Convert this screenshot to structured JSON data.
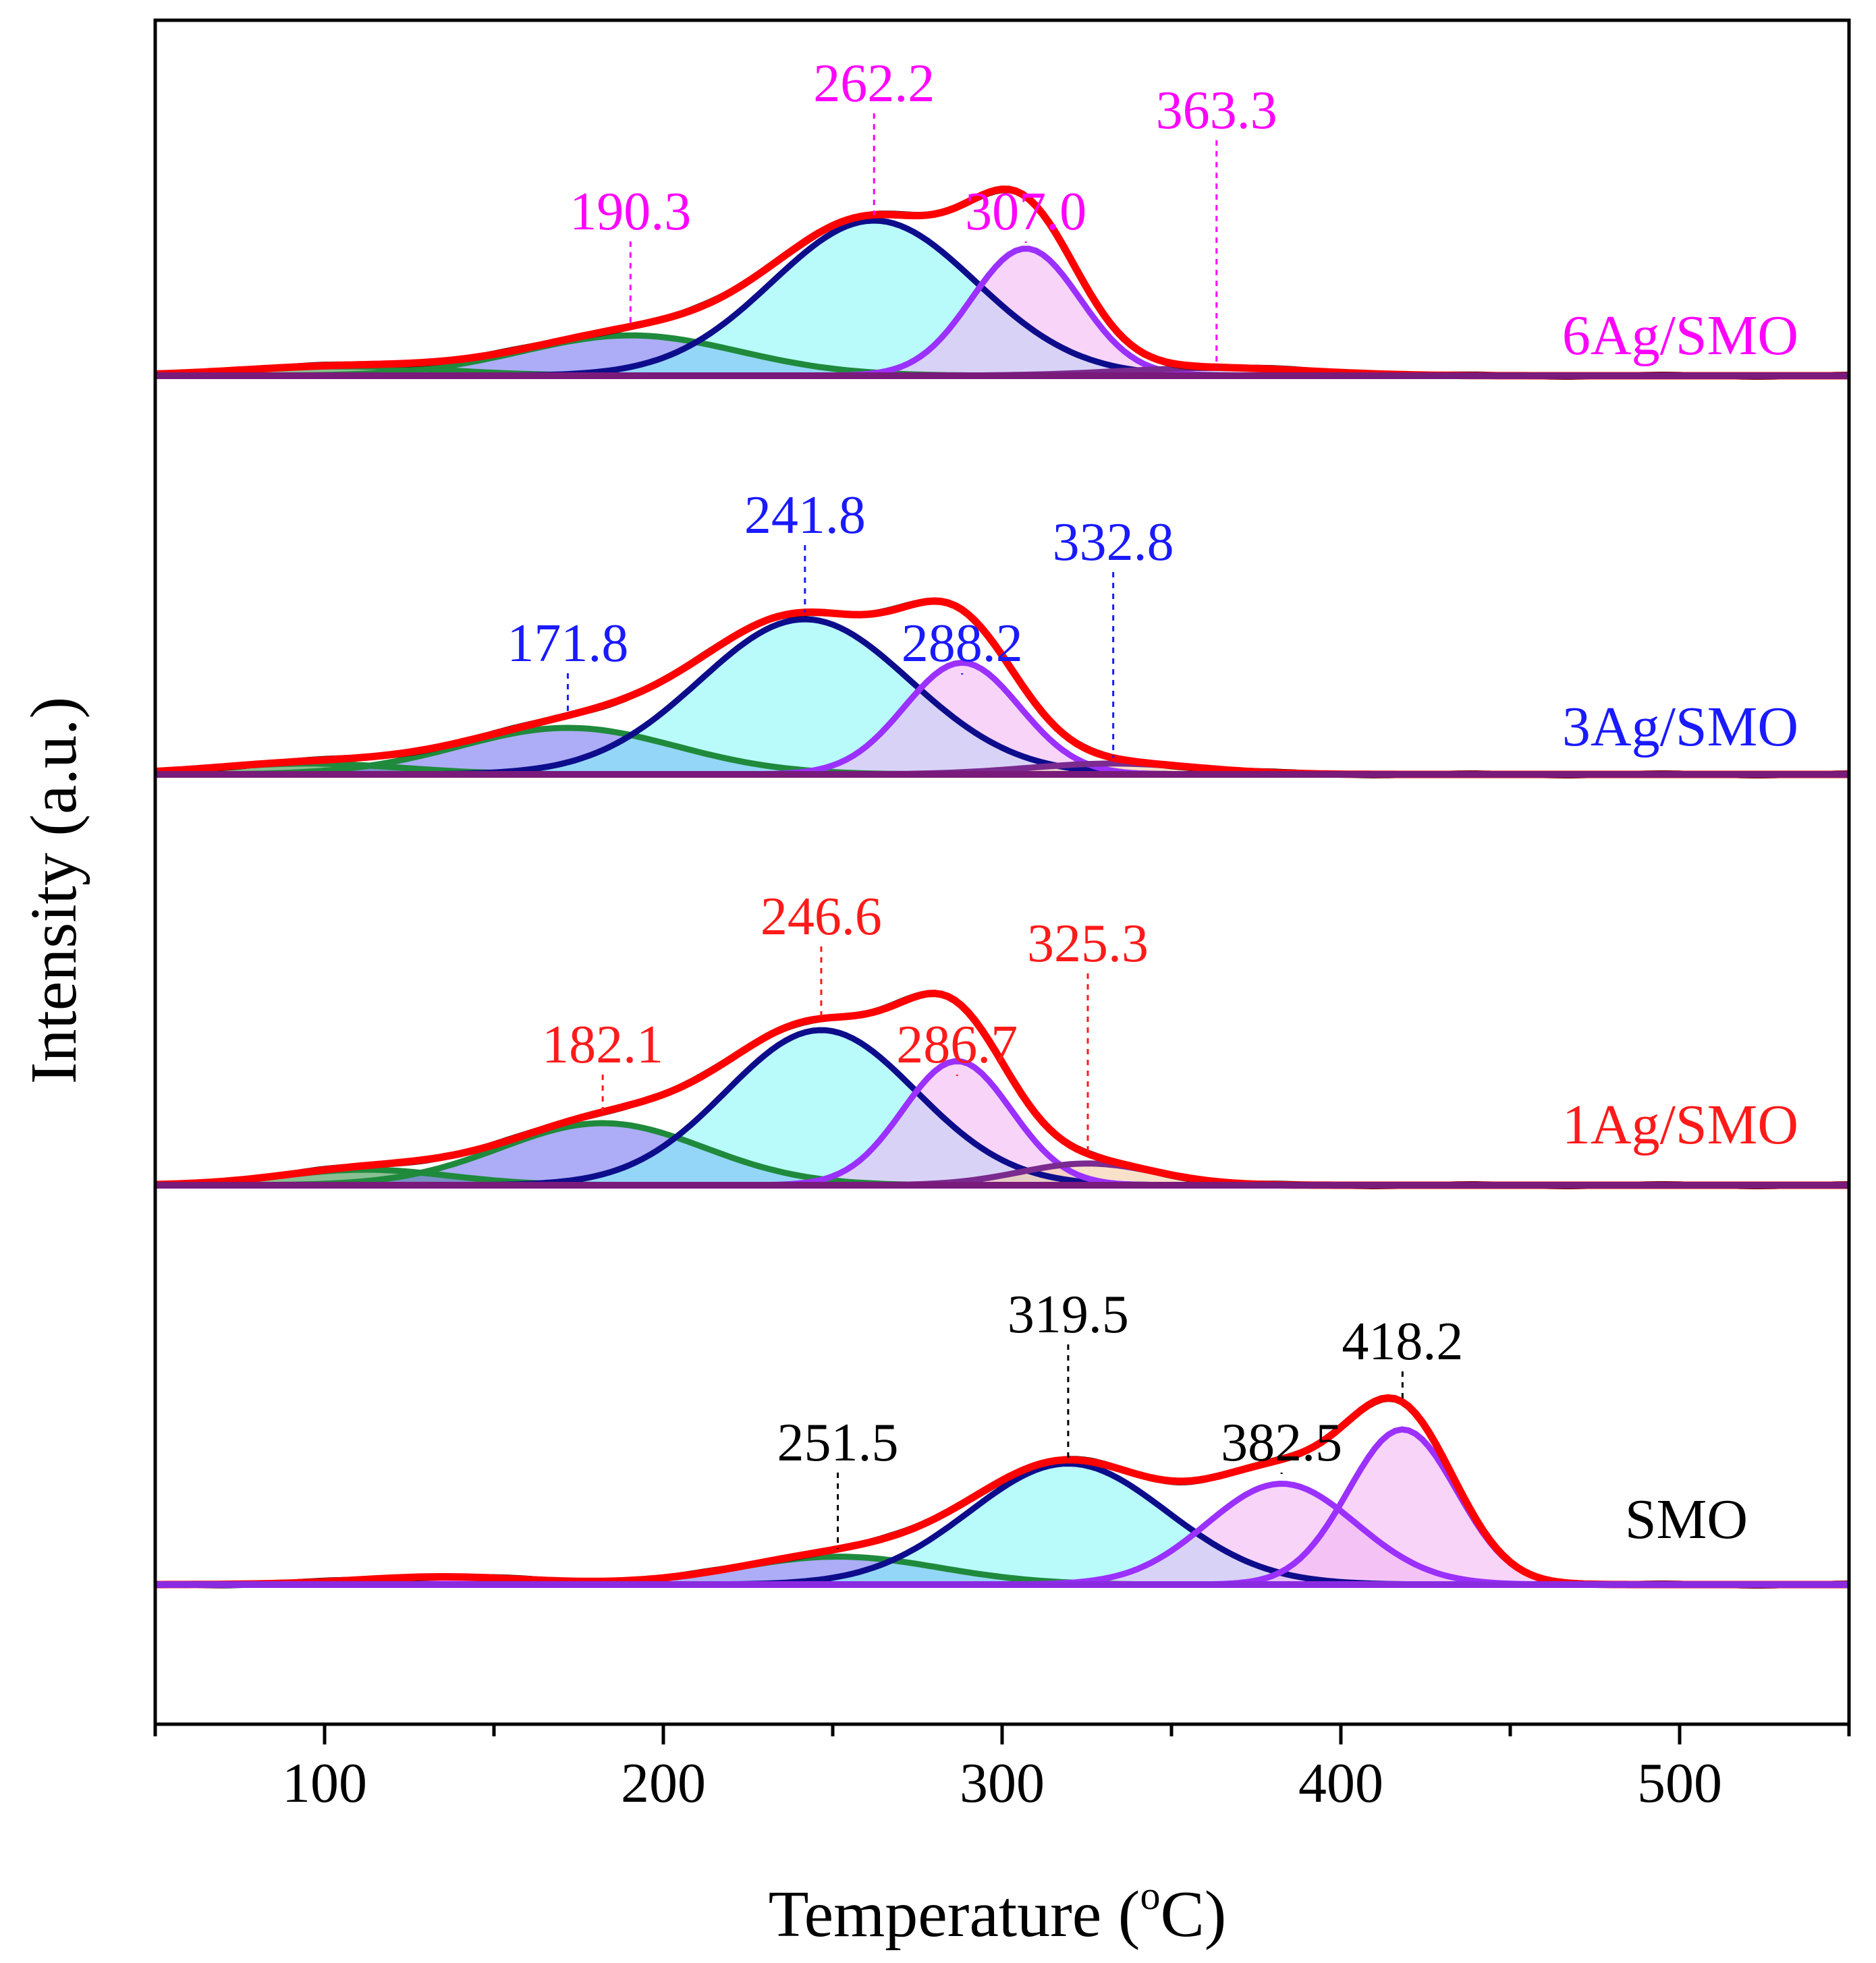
{
  "chart_data": {
    "type": "line",
    "subtype": "stacked-deconvolved-profiles",
    "xlabel": "Temperature (",
    "xlabel_unit_sup": "o",
    "xlabel_unit_end": "C)",
    "ylabel": "Intensity (a.u.)",
    "xlim": [
      50,
      550
    ],
    "x_ticks": [
      100,
      200,
      300,
      400,
      500
    ],
    "x_tick_labels": [
      "100",
      "200",
      "300",
      "400",
      "500"
    ],
    "panels": [
      {
        "sample": "6Ag/SMO",
        "color": "#ff00ff",
        "peaks": [
          {
            "label": "190.3",
            "center": 190.3,
            "height": 0.26,
            "width": 32,
            "fill": "#6a6af0",
            "stroke": "#1f8a3c"
          },
          {
            "label": "262.2",
            "center": 262.2,
            "height": 1.0,
            "width": 30,
            "fill": "#7ff7f7",
            "stroke": "#0d0d8c"
          },
          {
            "label": "307.0",
            "center": 307.0,
            "height": 0.82,
            "width": 16,
            "fill": "#f3b3f3",
            "stroke": "#9b30ff"
          },
          {
            "label": "363.3",
            "center": 363.3,
            "height": 0.05,
            "width": 28,
            "fill": "#c9b2f0",
            "stroke": "#7b2a8f"
          }
        ],
        "extra_components": [
          {
            "center": 105,
            "height": 0.06,
            "width": 30,
            "fill": "#2a8a3a",
            "stroke": "#1f8a3c"
          }
        ]
      },
      {
        "sample": "3Ag/SMO",
        "color": "#1a1aff",
        "peaks": [
          {
            "label": "171.8",
            "center": 171.8,
            "height": 0.3,
            "width": 32,
            "fill": "#6a6af0",
            "stroke": "#1f8a3c"
          },
          {
            "label": "241.8",
            "center": 241.8,
            "height": 1.0,
            "width": 31,
            "fill": "#7ff7f7",
            "stroke": "#0d0d8c"
          },
          {
            "label": "288.2",
            "center": 288.2,
            "height": 0.72,
            "width": 17,
            "fill": "#f3b3f3",
            "stroke": "#9b30ff"
          },
          {
            "label": "332.8",
            "center": 332.8,
            "height": 0.07,
            "width": 25,
            "fill": "#f2c89a",
            "stroke": "#7b2a8f"
          }
        ],
        "extra_components": [
          {
            "center": 95,
            "height": 0.07,
            "width": 28,
            "fill": "#2a8a3a",
            "stroke": "#1f8a3c"
          }
        ]
      },
      {
        "sample": "1Ag/SMO",
        "color": "#ff1a1a",
        "peaks": [
          {
            "label": "182.1",
            "center": 182.1,
            "height": 0.4,
            "width": 30,
            "fill": "#6a6af0",
            "stroke": "#1f8a3c"
          },
          {
            "label": "246.6",
            "center": 246.6,
            "height": 1.0,
            "width": 28,
            "fill": "#7ff7f7",
            "stroke": "#0d0d8c"
          },
          {
            "label": "286.7",
            "center": 286.7,
            "height": 0.8,
            "width": 16,
            "fill": "#f3b3f3",
            "stroke": "#9b30ff"
          },
          {
            "label": "325.3",
            "center": 325.3,
            "height": 0.14,
            "width": 20,
            "fill": "#f2c89a",
            "stroke": "#7b2a8f"
          }
        ],
        "extra_components": [
          {
            "center": 112,
            "height": 0.1,
            "width": 25,
            "fill": "#2a8a3a",
            "stroke": "#1f8a3c"
          }
        ]
      },
      {
        "sample": "SMO",
        "color": "#000000",
        "peaks": [
          {
            "label": "251.5",
            "center": 251.5,
            "height": 0.18,
            "width": 30,
            "fill": "#6a6af0",
            "stroke": "#1f8a3c"
          },
          {
            "label": "319.5",
            "center": 319.5,
            "height": 0.78,
            "width": 29,
            "fill": "#7ff7f7",
            "stroke": "#0d0d8c"
          },
          {
            "label": "382.5",
            "center": 382.5,
            "height": 0.65,
            "width": 22,
            "fill": "#f3b3f3",
            "stroke": "#9b30ff"
          },
          {
            "label": "418.2",
            "center": 418.2,
            "height": 1.0,
            "width": 16,
            "fill": "#f3b3f3",
            "stroke": "#9b30ff"
          }
        ],
        "extra_components": [
          {
            "center": 135,
            "height": 0.05,
            "width": 25,
            "fill": "#ff00ff",
            "stroke": "#ff00ff"
          }
        ]
      }
    ]
  }
}
